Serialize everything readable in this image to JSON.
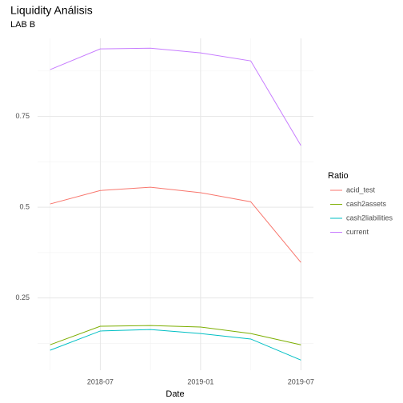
{
  "chart_data": {
    "type": "line",
    "title": "Liquidity Análisis",
    "subtitle": "LAB B",
    "x_label": "Date",
    "legend_title": "Ratio",
    "legend": "right",
    "x": [
      "2018-04",
      "2018-07",
      "2018-10",
      "2019-01",
      "2019-04",
      "2019-07"
    ],
    "xlim": [
      "2018-04",
      "2019-07"
    ],
    "xticks": [
      "2018-07",
      "2019-01",
      "2019-07"
    ],
    "x_minor_ticks": [
      "2018-04",
      "2018-10",
      "2019-04"
    ],
    "ylim": [
      0.051,
      0.965
    ],
    "yticks": [
      0.25,
      0.5,
      0.75
    ],
    "y_minor_ticks": [
      0.125,
      0.375,
      0.625,
      0.875
    ],
    "grid": true,
    "series": [
      {
        "name": "acid_test",
        "color": "#F8766D",
        "values": [
          0.509,
          0.546,
          0.555,
          0.54,
          0.515,
          0.348
        ]
      },
      {
        "name": "cash2assets",
        "color": "#7CAE00",
        "values": [
          0.121,
          0.172,
          0.174,
          0.17,
          0.152,
          0.121
        ]
      },
      {
        "name": "cash2liabilities",
        "color": "#00BFC4",
        "values": [
          0.106,
          0.159,
          0.163,
          0.152,
          0.137,
          0.079
        ]
      },
      {
        "name": "current",
        "color": "#C77CFF",
        "values": [
          0.879,
          0.936,
          0.938,
          0.925,
          0.903,
          0.67
        ]
      }
    ]
  }
}
